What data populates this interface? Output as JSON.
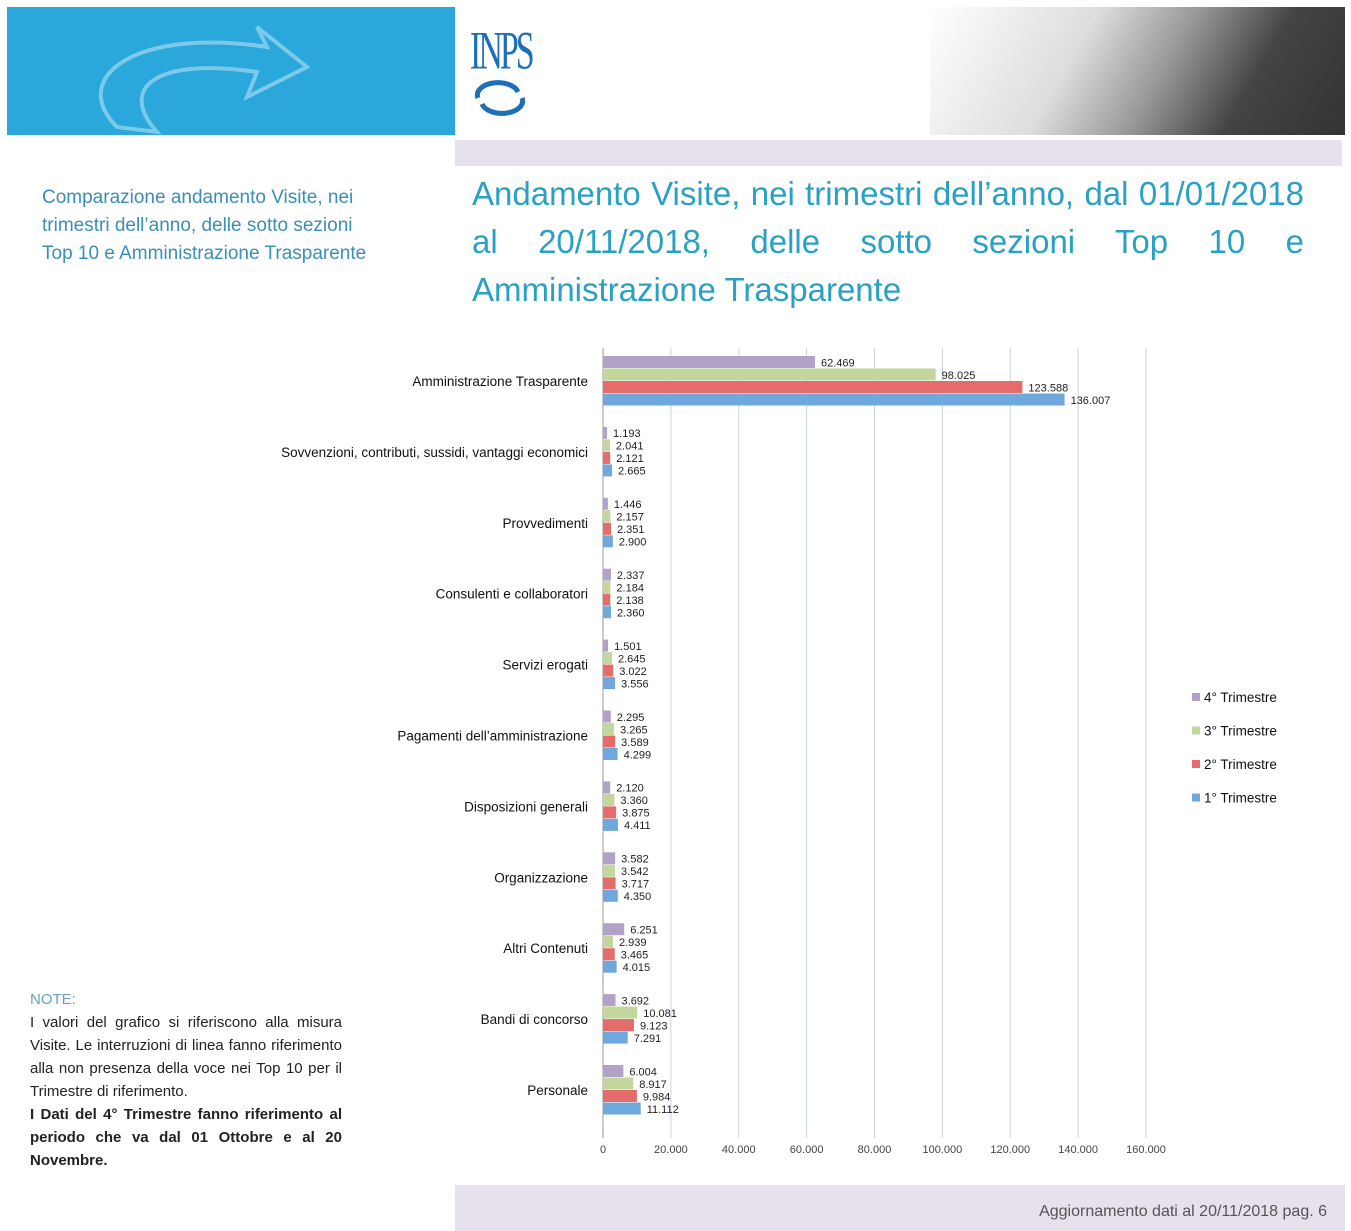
{
  "header": {
    "logo": "INPS"
  },
  "sidebar": {
    "text": "Comparazione andamento Visite, nei trimestri dell’anno, delle sotto sezioni Top 10 e Amministrazione Trasparente"
  },
  "title": "Andamento Visite, nei trimestri dell’anno, dal 01/01/2018 al 20/11/2018, delle sotto sezioni Top 10 e Amministrazione Trasparente",
  "note": {
    "heading": "NOTE:",
    "text": "I valori del grafico si riferiscono alla misura Visite. Le interruzioni di linea fanno riferimento alla non presenza della voce nei Top 10 per il Trimestre di riferimento.",
    "bold_text": "I Dati del 4° Trimestre fanno riferimento al periodo che va dal 01 Ottobre e al 20 Novembre."
  },
  "footer": {
    "text": "Aggiornamento dati al 20/11/2018 pag. 6"
  },
  "chart_data": {
    "type": "bar",
    "orientation": "horizontal",
    "grid": true,
    "legend": "right",
    "categories": [
      "Amministrazione Trasparente",
      "Sovvenzioni, contributi, sussidi, vantaggi economici",
      "Provvedimenti",
      "Consulenti e collaboratori",
      "Servizi erogati",
      "Pagamenti dell’amministrazione",
      "Disposizioni generali",
      "Organizzazione",
      "Altri Contenuti",
      "Bandi di concorso",
      "Personale"
    ],
    "series": [
      {
        "name": "4° Trimestre",
        "color": "#b3a2c7",
        "values": [
          62469,
          1193,
          1446,
          2337,
          1501,
          2295,
          2120,
          3582,
          6251,
          3692,
          6004
        ],
        "value_labels": [
          "62.469",
          "1.193",
          "1.446",
          "2.337",
          "1.501",
          "2.295",
          "2.120",
          "3.582",
          "6.251",
          "3.692",
          "6.004"
        ]
      },
      {
        "name": "3° Trimestre",
        "color": "#c3d69b",
        "values": [
          98025,
          2041,
          2157,
          2184,
          2645,
          3265,
          3360,
          3542,
          2939,
          10081,
          8917
        ],
        "value_labels": [
          "98.025",
          "2.041",
          "2.157",
          "2.184",
          "2.645",
          "3.265",
          "3.360",
          "3.542",
          "2.939",
          "10.081",
          "8.917"
        ]
      },
      {
        "name": "2° Trimestre",
        "color": "#e46c6a",
        "values": [
          123588,
          2121,
          2351,
          2138,
          3022,
          3589,
          3875,
          3717,
          3465,
          9123,
          9984
        ],
        "value_labels": [
          "123.588",
          "2.121",
          "2.351",
          "2.138",
          "3.022",
          "3.589",
          "3.875",
          "3.717",
          "3.465",
          "9.123",
          "9.984"
        ]
      },
      {
        "name": "1° Trimestre",
        "color": "#6fa8dc",
        "values": [
          136007,
          2665,
          2900,
          2360,
          3556,
          4299,
          4411,
          4350,
          4015,
          7291,
          11112
        ],
        "value_labels": [
          "136.007",
          "2.665",
          "2.900",
          "2.360",
          "3.556",
          "4.299",
          "4.411",
          "4.350",
          "4.015",
          "7.291",
          "11.112"
        ]
      }
    ],
    "xlim": [
      0,
      160000
    ],
    "xticks": [
      0,
      {
        "value": 20000,
        "label": "20.000"
      },
      {
        "value": 40000,
        "label": "40.000"
      },
      {
        "value": 60000,
        "label": "60.000"
      },
      {
        "value": 80000,
        "label": "80.000"
      },
      {
        "value": 100000,
        "label": "100.000"
      },
      {
        "value": 120000,
        "label": "120.000"
      },
      {
        "value": 140000,
        "label": "140.000"
      },
      {
        "value": 160000,
        "label": "160.000"
      }
    ]
  }
}
